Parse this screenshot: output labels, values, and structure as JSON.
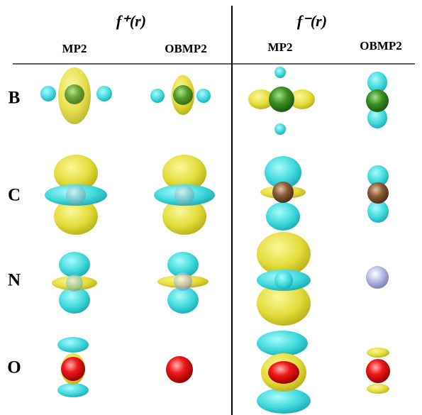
{
  "header": {
    "groups": [
      {
        "label": "f⁺(r)",
        "columns": [
          "MP2",
          "OBMP2"
        ]
      },
      {
        "label": "f⁻(r)",
        "columns": [
          "MP2",
          "OBMP2"
        ]
      }
    ]
  },
  "rows": [
    "B",
    "C",
    "N",
    "O"
  ]
}
